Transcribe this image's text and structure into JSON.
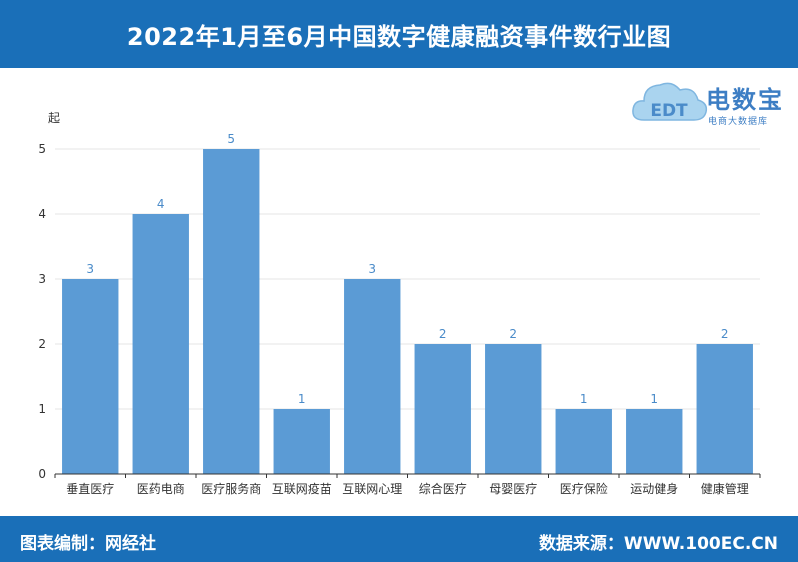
{
  "header": {
    "title": "2022年1月至6月中国数字健康融资事件数行业图"
  },
  "footer": {
    "left_text": "图表编制：网经社",
    "right_text": "数据来源：WWW.100EC.CN"
  },
  "logo": {
    "brand": "电数宝",
    "sub": "电商大数据库",
    "mark": "EDT"
  },
  "colors": {
    "bar": "#5b9bd5",
    "header": "#1a6fb8",
    "value_label": "#4a8bc9"
  },
  "chart_data": {
    "type": "bar",
    "ylabel": "起",
    "ylim": [
      0,
      5
    ],
    "yticks": [
      0,
      1,
      2,
      3,
      4,
      5
    ],
    "categories": [
      "垂直医疗",
      "医药电商",
      "医疗服务商",
      "互联网疫苗",
      "互联网心理",
      "综合医疗",
      "母婴医疗",
      "医疗保险",
      "运动健身",
      "健康管理"
    ],
    "values": [
      3,
      4,
      5,
      1,
      3,
      2,
      2,
      1,
      1,
      2
    ],
    "data_labels": [
      "3",
      "4",
      "5",
      "1",
      "3",
      "2",
      "2",
      "1",
      "1",
      "2"
    ],
    "grid": true,
    "legend": "none"
  }
}
